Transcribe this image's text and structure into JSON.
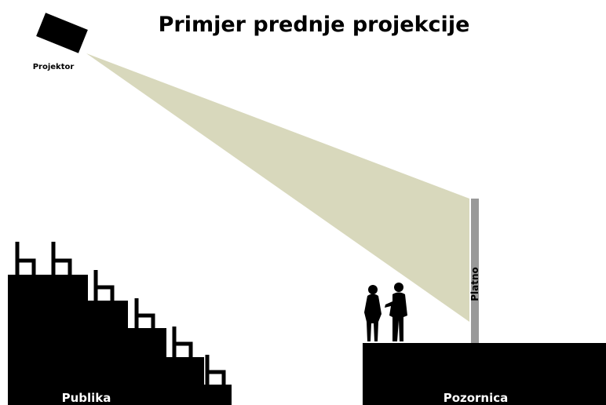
{
  "title": "Primjer prednje projekcije",
  "labels": {
    "projector": "Projektor",
    "screen": "Platno",
    "audience": "Publika",
    "stage": "Pozornica"
  }
}
